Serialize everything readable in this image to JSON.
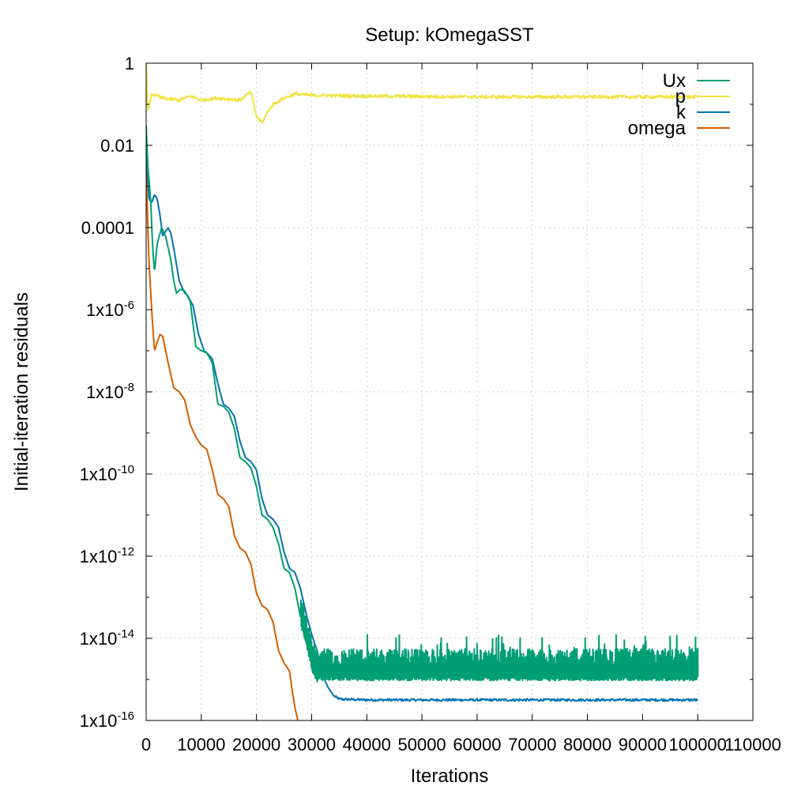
{
  "chart_data": {
    "type": "line",
    "title": "Setup: kOmegaSST",
    "xlabel": "Iterations",
    "ylabel": "Initial-iteration residuals",
    "xlim": [
      0,
      110000
    ],
    "ylim_log10": [
      -16,
      0
    ],
    "yscale": "log",
    "grid": true,
    "legend_position": "top-right",
    "x_ticks": [
      0,
      10000,
      20000,
      30000,
      40000,
      50000,
      60000,
      70000,
      80000,
      90000,
      100000,
      110000
    ],
    "x_tick_labels": [
      "0",
      "10000",
      "20000",
      "30000",
      "40000",
      "50000",
      "60000",
      "70000",
      "80000",
      "90000",
      "100000",
      "110000"
    ],
    "y_ticks_log10": [
      -16,
      -14,
      -12,
      -10,
      -8,
      -6,
      -4,
      -2,
      0
    ],
    "y_tick_labels": [
      {
        "base": "1x10",
        "exp": "-16"
      },
      {
        "base": "1x10",
        "exp": "-14"
      },
      {
        "base": "1x10",
        "exp": "-12"
      },
      {
        "base": "1x10",
        "exp": "-10"
      },
      {
        "base": "1x10",
        "exp": "-8"
      },
      {
        "base": "1x10",
        "exp": "-6"
      },
      {
        "base": "0.0001",
        "exp": ""
      },
      {
        "base": "0.01",
        "exp": ""
      },
      {
        "base": "1",
        "exp": ""
      }
    ],
    "series": [
      {
        "name": "Ux",
        "color": "#009e73",
        "noise_after_x": 28000,
        "log10_points": [
          [
            0,
            -1.5
          ],
          [
            300,
            -2.5
          ],
          [
            800,
            -3.3
          ],
          [
            1200,
            -4.5
          ],
          [
            1500,
            -5.1
          ],
          [
            2000,
            -4.4
          ],
          [
            2800,
            -4.0
          ],
          [
            3500,
            -4.2
          ],
          [
            4500,
            -4.8
          ],
          [
            5000,
            -5.3
          ],
          [
            5500,
            -5.6
          ],
          [
            6200,
            -5.5
          ],
          [
            7000,
            -5.55
          ],
          [
            8000,
            -5.8
          ],
          [
            9000,
            -6.9
          ],
          [
            10000,
            -7.0
          ],
          [
            11000,
            -7.05
          ],
          [
            12000,
            -7.3
          ],
          [
            13000,
            -8.3
          ],
          [
            14000,
            -8.35
          ],
          [
            15000,
            -8.5
          ],
          [
            16000,
            -8.9
          ],
          [
            17000,
            -9.6
          ],
          [
            18000,
            -9.7
          ],
          [
            19000,
            -9.85
          ],
          [
            20000,
            -10.3
          ],
          [
            21000,
            -11.0
          ],
          [
            22000,
            -11.1
          ],
          [
            23000,
            -11.3
          ],
          [
            24000,
            -11.7
          ],
          [
            25000,
            -12.3
          ],
          [
            26000,
            -12.4
          ],
          [
            27000,
            -12.8
          ],
          [
            28000,
            -13.5
          ],
          [
            29000,
            -14.0
          ],
          [
            30000,
            -14.6
          ],
          [
            31000,
            -14.9
          ]
        ],
        "noise_floor_log10": -14.85,
        "noise_spike_max_log10": -13.9
      },
      {
        "name": "p",
        "color": "#f0e442",
        "log10_points": [
          [
            0,
            0
          ],
          [
            300,
            -1.2
          ],
          [
            1000,
            -0.75
          ],
          [
            3000,
            -0.85
          ],
          [
            6000,
            -0.9
          ],
          [
            8000,
            -0.8
          ],
          [
            10000,
            -0.9
          ],
          [
            13000,
            -0.85
          ],
          [
            17000,
            -0.9
          ],
          [
            19000,
            -0.7
          ],
          [
            20000,
            -1.3
          ],
          [
            21000,
            -1.45
          ],
          [
            22000,
            -1.2
          ],
          [
            23000,
            -1.0
          ],
          [
            25000,
            -0.85
          ],
          [
            27000,
            -0.75
          ],
          [
            30000,
            -0.78
          ],
          [
            40000,
            -0.8
          ],
          [
            60000,
            -0.82
          ],
          [
            80000,
            -0.82
          ],
          [
            100000,
            -0.82
          ]
        ]
      },
      {
        "name": "k",
        "color": "#0072b2",
        "log10_points": [
          [
            0,
            -2.0
          ],
          [
            500,
            -3.3
          ],
          [
            1000,
            -3.4
          ],
          [
            1500,
            -3.2
          ],
          [
            2000,
            -3.3
          ],
          [
            2500,
            -3.7
          ],
          [
            3000,
            -4.2
          ],
          [
            3500,
            -4.1
          ],
          [
            4000,
            -4.0
          ],
          [
            4500,
            -4.15
          ],
          [
            5000,
            -4.5
          ],
          [
            6000,
            -5.3
          ],
          [
            7000,
            -5.6
          ],
          [
            7500,
            -5.65
          ],
          [
            8500,
            -5.9
          ],
          [
            9500,
            -6.6
          ],
          [
            10500,
            -7.0
          ],
          [
            11000,
            -7.05
          ],
          [
            12000,
            -7.2
          ],
          [
            13000,
            -7.8
          ],
          [
            14000,
            -8.3
          ],
          [
            15000,
            -8.4
          ],
          [
            16000,
            -8.6
          ],
          [
            17000,
            -9.2
          ],
          [
            18000,
            -9.6
          ],
          [
            19000,
            -9.7
          ],
          [
            20000,
            -9.9
          ],
          [
            21000,
            -10.6
          ],
          [
            22000,
            -11.0
          ],
          [
            23000,
            -11.1
          ],
          [
            24000,
            -11.3
          ],
          [
            25000,
            -11.9
          ],
          [
            26000,
            -12.3
          ],
          [
            27000,
            -12.4
          ],
          [
            28000,
            -12.8
          ],
          [
            29000,
            -13.4
          ],
          [
            30000,
            -13.9
          ],
          [
            31000,
            -14.3
          ],
          [
            32000,
            -14.9
          ],
          [
            33000,
            -15.2
          ],
          [
            34000,
            -15.4
          ],
          [
            35000,
            -15.48
          ],
          [
            40000,
            -15.5
          ],
          [
            60000,
            -15.5
          ],
          [
            80000,
            -15.5
          ],
          [
            100000,
            -15.5
          ]
        ]
      },
      {
        "name": "omega",
        "color": "#d55e00",
        "log10_points": [
          [
            0,
            -2.6
          ],
          [
            500,
            -4.8
          ],
          [
            1000,
            -6.0
          ],
          [
            1500,
            -7.0
          ],
          [
            2000,
            -6.8
          ],
          [
            2500,
            -6.6
          ],
          [
            3000,
            -6.65
          ],
          [
            4000,
            -7.3
          ],
          [
            5000,
            -7.9
          ],
          [
            6000,
            -8.0
          ],
          [
            7000,
            -8.2
          ],
          [
            8000,
            -8.8
          ],
          [
            9000,
            -9.1
          ],
          [
            10000,
            -9.3
          ],
          [
            11000,
            -9.4
          ],
          [
            12000,
            -9.9
          ],
          [
            13000,
            -10.5
          ],
          [
            14000,
            -10.6
          ],
          [
            15000,
            -10.8
          ],
          [
            16000,
            -11.5
          ],
          [
            17000,
            -11.8
          ],
          [
            18000,
            -11.9
          ],
          [
            19000,
            -12.2
          ],
          [
            20000,
            -12.9
          ],
          [
            21000,
            -13.2
          ],
          [
            22000,
            -13.3
          ],
          [
            23000,
            -13.6
          ],
          [
            24000,
            -14.3
          ],
          [
            25000,
            -14.6
          ],
          [
            26000,
            -14.8
          ],
          [
            26500,
            -15.3
          ],
          [
            27000,
            -15.7
          ],
          [
            27500,
            -16.0
          ]
        ]
      }
    ]
  }
}
